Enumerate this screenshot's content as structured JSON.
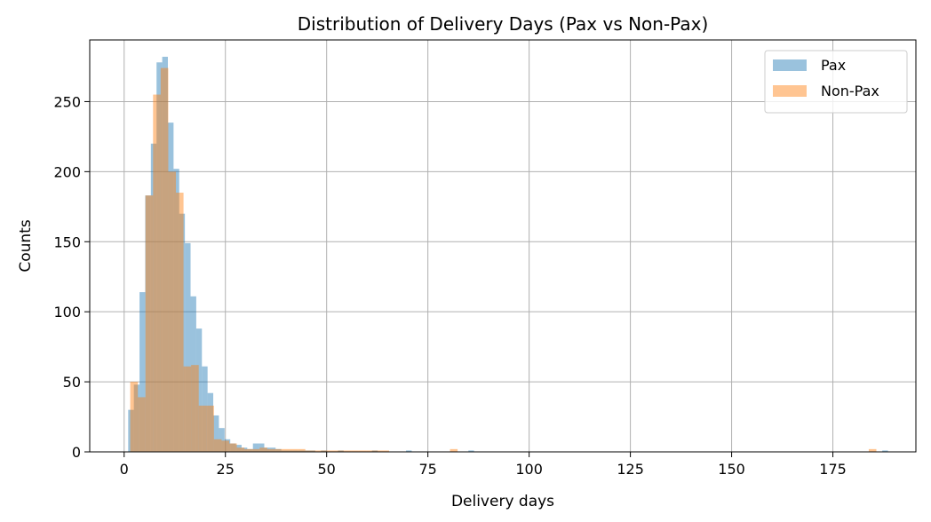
{
  "chart_data": {
    "type": "bar",
    "title": "Distribution of Delivery Days (Pax vs Non-Pax)",
    "xlabel": "Delivery days",
    "ylabel": "Counts",
    "xlim": [
      -8.5,
      195.5
    ],
    "ylim": [
      0,
      294
    ],
    "x_ticks": [
      0,
      25,
      50,
      75,
      100,
      125,
      150,
      175
    ],
    "y_ticks": [
      0,
      50,
      100,
      150,
      200,
      250
    ],
    "grid": true,
    "legend_position": "upper right",
    "series": [
      {
        "name": "Pax",
        "color": "#1f77b4",
        "opacity": 0.45,
        "bin_start": 1,
        "bin_width": 1.4,
        "counts": [
          30,
          48,
          114,
          183,
          220,
          278,
          282,
          235,
          202,
          170,
          149,
          111,
          88,
          61,
          42,
          26,
          17,
          9,
          6,
          5,
          3,
          2,
          6,
          6,
          3,
          3,
          2,
          1,
          1,
          1,
          1,
          1,
          1,
          0,
          1,
          0,
          0,
          1,
          0,
          0,
          0,
          0,
          0,
          1,
          0,
          0,
          0,
          0,
          0,
          1,
          0,
          0,
          0,
          0,
          0,
          0,
          0,
          0,
          0,
          0,
          1,
          0,
          0,
          0,
          0,
          0,
          0,
          0,
          0,
          0,
          0,
          0,
          0,
          0,
          0,
          0,
          0,
          0,
          0,
          0,
          0,
          0,
          0,
          0,
          0,
          0,
          0,
          0,
          0,
          0,
          0,
          0,
          0,
          0,
          0,
          0,
          0,
          0,
          0,
          0,
          0,
          0,
          0,
          0,
          0,
          0,
          0,
          0,
          0,
          0,
          0,
          0,
          0,
          0,
          0,
          0,
          0,
          0,
          0,
          0,
          0,
          0,
          0,
          0,
          0,
          0,
          0,
          0,
          0,
          0,
          0,
          0,
          0,
          1
        ]
      },
      {
        "name": "Non-Pax",
        "color": "#ff7f0e",
        "opacity": 0.45,
        "bin_start": 1.5,
        "bin_width": 1.88,
        "counts": [
          50,
          39,
          183,
          255,
          274,
          200,
          185,
          61,
          62,
          33,
          33,
          9,
          8,
          6,
          3,
          2,
          2,
          3,
          2,
          2,
          2,
          2,
          2,
          1,
          1,
          1,
          1,
          1,
          1,
          1,
          1,
          1,
          1,
          1,
          0,
          0,
          0,
          0,
          0,
          0,
          0,
          0,
          2,
          0,
          0,
          0,
          0,
          0,
          0,
          0,
          0,
          0,
          0,
          0,
          0,
          0,
          0,
          0,
          0,
          0,
          0,
          0,
          0,
          0,
          0,
          0,
          0,
          0,
          0,
          0,
          0,
          0,
          0,
          0,
          0,
          0,
          0,
          0,
          0,
          0,
          0,
          0,
          0,
          0,
          0,
          0,
          0,
          0,
          0,
          0,
          0,
          0,
          0,
          0,
          0,
          0,
          0,
          2
        ]
      }
    ]
  }
}
